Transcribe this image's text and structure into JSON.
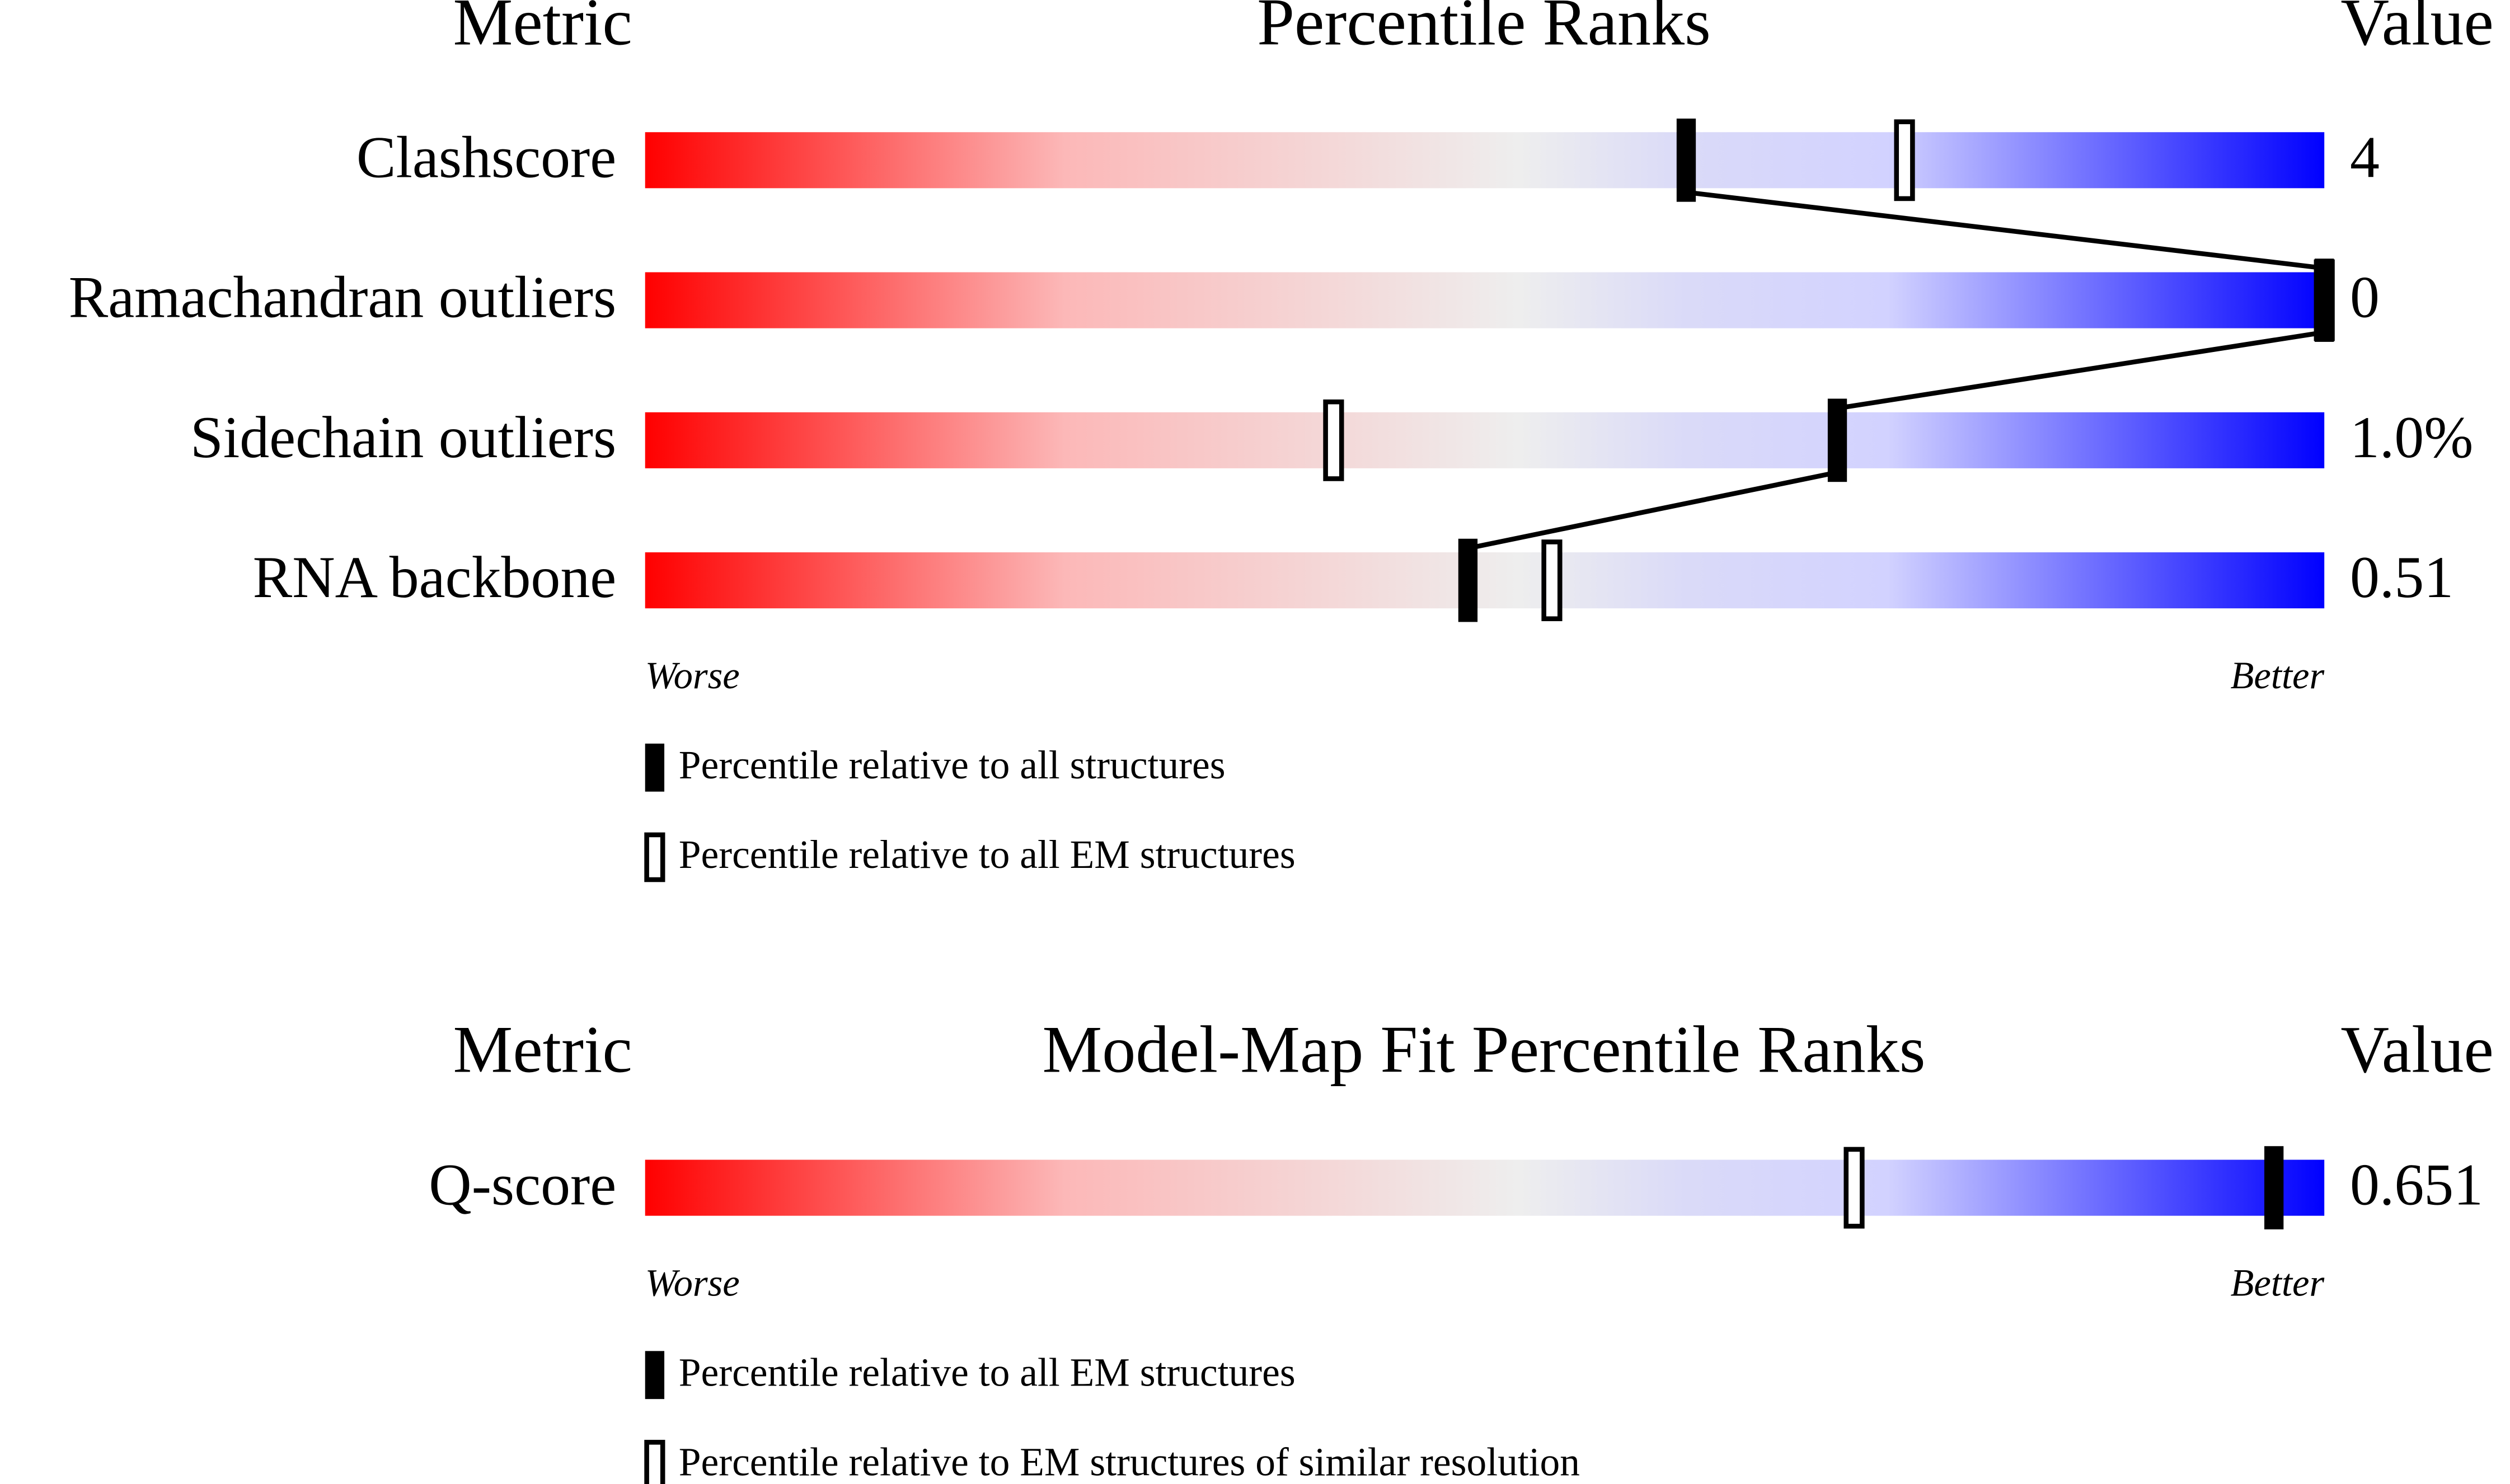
{
  "chart_data": [
    {
      "type": "percentile",
      "header_metric": "Metric",
      "title": "Percentile Ranks",
      "header_value": "Value",
      "xlim": [
        0,
        100
      ],
      "categories": [
        "Clashscore",
        "Ramachandran outliers",
        "Sidechain outliers",
        "RNA backbone"
      ],
      "metric_values": [
        4,
        0,
        {
          "value": 1.0,
          "label": "1.0%"
        },
        0.51
      ],
      "series": [
        {
          "name": "Percentile relative to all structures",
          "style": "filled",
          "connected": true,
          "values": [
            62,
            100,
            71,
            49
          ]
        },
        {
          "name": "Percentile relative to all EM structures",
          "style": "hollow",
          "connected": false,
          "values": [
            75,
            100,
            41,
            54
          ]
        }
      ],
      "worse_label": "Worse",
      "better_label": "Better"
    },
    {
      "type": "percentile",
      "header_metric": "Metric",
      "title": "Model-Map Fit Percentile Ranks",
      "header_value": "Value",
      "xlim": [
        0,
        100
      ],
      "categories": [
        "Q-score"
      ],
      "metric_values": [
        0.651
      ],
      "series": [
        {
          "name": "Percentile relative to all EM structures",
          "style": "filled",
          "connected": true,
          "values": [
            97
          ]
        },
        {
          "name": "Percentile relative to EM structures of similar resolution",
          "style": "hollow",
          "connected": false,
          "values": [
            72
          ]
        }
      ],
      "worse_label": "Worse",
      "better_label": "Better"
    }
  ]
}
